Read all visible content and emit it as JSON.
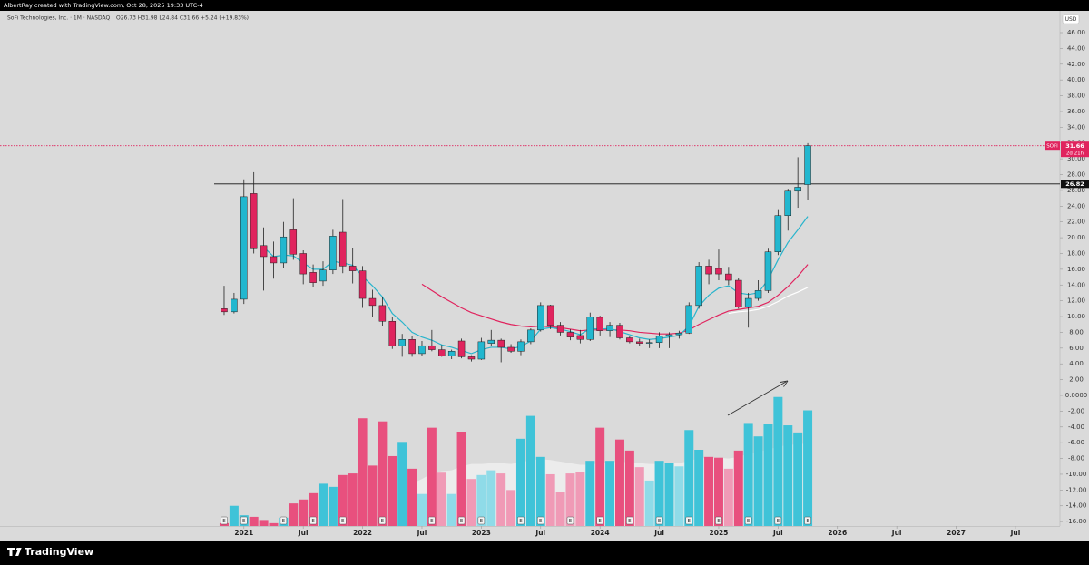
{
  "header": {
    "author_line": "AlbertRay created with TradingView.com, Oct 28, 2025 19:33 UTC-4",
    "symbol_line": "SoFi Technologies, Inc. · 1M · NASDAQ",
    "ohlc_line": "O26.73 H31.98 L24.84 C31.66 +5.24 (+19.83%)",
    "currency": "USD",
    "brand": "TradingView"
  },
  "chart_data": {
    "type": "candlestick",
    "x": [
      2020.8333,
      2020.9167,
      2021,
      2021.0833,
      2021.1667,
      2021.25,
      2021.3333,
      2021.4167,
      2021.5,
      2021.5833,
      2021.6667,
      2021.75,
      2021.8333,
      2021.9167,
      2022,
      2022.0833,
      2022.1667,
      2022.25,
      2022.3333,
      2022.4167,
      2022.5,
      2022.5833,
      2022.6667,
      2022.75,
      2022.8333,
      2022.9167,
      2023,
      2023.0833,
      2023.1667,
      2023.25,
      2023.3333,
      2023.4167,
      2023.5,
      2023.5833,
      2023.6667,
      2023.75,
      2023.8333,
      2023.9167,
      2024,
      2024.0833,
      2024.1667,
      2024.25,
      2024.3333,
      2024.4167,
      2024.5,
      2024.5833,
      2024.6667,
      2024.75,
      2024.8333,
      2024.9167,
      2025,
      2025.0833,
      2025.1667,
      2025.25,
      2025.3333,
      2025.4167,
      2025.5,
      2025.5833,
      2025.6667,
      2025.75
    ],
    "open": [
      11.0,
      10.6,
      12.2,
      25.6,
      19.0,
      17.6,
      16.8,
      21.0,
      18.0,
      15.6,
      14.5,
      15.9,
      20.7,
      16.4,
      15.8,
      12.3,
      11.4,
      9.4,
      6.3,
      7.1,
      5.3,
      6.3,
      5.8,
      5.0,
      6.9,
      4.9,
      4.6,
      6.6,
      7.0,
      6.1,
      5.6,
      6.8,
      8.3,
      11.4,
      8.9,
      8.0,
      7.6,
      7.1,
      9.9,
      8.2,
      8.9,
      7.3,
      6.8,
      6.6,
      6.7,
      7.5,
      7.7,
      7.9,
      11.4,
      16.4,
      16.1,
      15.4,
      14.6,
      11.2,
      12.3,
      13.3,
      18.2,
      22.8,
      25.9,
      26.73
    ],
    "high": [
      13.9,
      13.0,
      27.4,
      28.3,
      21.3,
      19.5,
      22.0,
      25.0,
      18.4,
      16.6,
      17.0,
      21.0,
      24.9,
      18.7,
      16.4,
      13.4,
      12.5,
      10.0,
      7.8,
      7.5,
      6.9,
      8.3,
      6.4,
      5.8,
      7.2,
      5.1,
      7.3,
      8.3,
      7.2,
      6.5,
      7.1,
      8.5,
      11.8,
      11.5,
      9.3,
      8.4,
      8.3,
      10.5,
      10.1,
      9.3,
      9.2,
      7.5,
      7.2,
      7.1,
      8.0,
      8.0,
      8.2,
      11.8,
      16.9,
      17.2,
      18.5,
      16.3,
      14.9,
      13.0,
      14.6,
      18.6,
      23.5,
      26.2,
      30.2,
      31.98
    ],
    "low": [
      10.2,
      10.4,
      11.6,
      18.0,
      13.3,
      14.8,
      16.2,
      17.2,
      14.1,
      13.8,
      13.9,
      15.4,
      15.5,
      14.2,
      11.1,
      10.0,
      8.8,
      5.9,
      4.9,
      4.9,
      5.0,
      5.6,
      4.9,
      4.6,
      4.7,
      4.3,
      4.5,
      6.3,
      4.2,
      5.4,
      5.1,
      6.5,
      8.1,
      8.4,
      7.6,
      7.0,
      6.6,
      6.9,
      7.6,
      7.4,
      7.1,
      6.6,
      6.3,
      6.0,
      6.0,
      6.0,
      7.2,
      7.8,
      11.0,
      14.1,
      14.6,
      14.0,
      11.0,
      8.6,
      12.0,
      13.0,
      17.8,
      20.9,
      23.8,
      24.84
    ],
    "close": [
      10.6,
      12.2,
      25.2,
      18.6,
      17.6,
      16.8,
      20.1,
      17.9,
      15.4,
      14.3,
      15.9,
      20.2,
      16.4,
      15.8,
      12.3,
      11.4,
      9.4,
      6.3,
      7.1,
      5.3,
      6.3,
      5.8,
      5.0,
      5.6,
      4.9,
      4.6,
      6.8,
      7.0,
      6.1,
      5.6,
      6.8,
      8.3,
      11.4,
      8.9,
      8.0,
      7.4,
      7.1,
      9.95,
      8.2,
      8.9,
      7.3,
      6.8,
      6.6,
      6.7,
      7.5,
      7.7,
      7.9,
      11.4,
      16.4,
      15.4,
      15.4,
      14.6,
      11.2,
      12.3,
      13.3,
      18.2,
      22.8,
      25.9,
      26.4,
      31.66
    ],
    "up_color": "#22b7cf",
    "down_color": "#e0245e",
    "volume": {
      "values": [
        -16.2,
        -14.0,
        -15.2,
        -15.4,
        -15.8,
        -16.2,
        -15.5,
        -13.7,
        -13.2,
        -12.4,
        -11.2,
        -11.6,
        -10.1,
        -9.9,
        -2.9,
        -8.9,
        -3.3,
        -7.7,
        -5.9,
        -9.3,
        -12.5,
        -4.1,
        -9.8,
        -12.5,
        -4.6,
        -10.6,
        -10.1,
        -9.5,
        -9.9,
        -12.0,
        -5.5,
        -2.6,
        -7.8,
        -10.0,
        -12.2,
        -9.9,
        -9.7,
        -8.3,
        -4.1,
        -8.3,
        -5.6,
        -7.0,
        -9.1,
        -10.8,
        -8.3,
        -8.6,
        -9.0,
        -4.4,
        -6.9,
        -7.8,
        -7.9,
        -9.3,
        -7.0,
        -3.5,
        -5.2,
        -3.6,
        -0.2,
        -3.8,
        -4.7,
        -1.9
      ],
      "up_color": "#3fc3d8",
      "down_color": "#e8507e",
      "faded_up_color": "#8fdbe8",
      "faded_down_color": "#f09ab6",
      "ma_color": "#f2f2f2",
      "ma": [
        null,
        null,
        null,
        null,
        null,
        null,
        null,
        null,
        null,
        null,
        null,
        null,
        null,
        null,
        null,
        null,
        null,
        null,
        null,
        -11.2,
        -10.6,
        -9.9,
        -9.6,
        -9.5,
        -9.0,
        -8.7,
        -8.7,
        -8.6,
        -8.6,
        -8.7,
        -8.5,
        -8.2,
        -8.1,
        -8.2,
        -8.4,
        -8.6,
        -8.8,
        -8.8,
        -8.6,
        -8.5,
        -8.4,
        -8.5,
        -8.6,
        -8.7,
        -8.7,
        -8.6,
        -8.6,
        -8.3,
        -8.0,
        -7.9,
        -7.9,
        -8.0,
        -7.8,
        -7.4,
        -7.1,
        -6.9,
        -6.5,
        -6.3,
        -6.2,
        -6.1
      ]
    },
    "moving_averages": [
      {
        "color": "#e0245e",
        "values": [
          null,
          null,
          null,
          null,
          null,
          null,
          null,
          null,
          null,
          null,
          null,
          null,
          null,
          null,
          null,
          null,
          null,
          null,
          null,
          null,
          14.1,
          13.3,
          12.5,
          11.8,
          11.1,
          10.5,
          10.1,
          9.7,
          9.3,
          9.0,
          8.8,
          8.7,
          8.8,
          8.7,
          8.6,
          8.4,
          8.2,
          8.3,
          8.3,
          8.3,
          8.3,
          8.2,
          8.0,
          7.9,
          7.8,
          7.8,
          7.9,
          8.3,
          9.0,
          9.6,
          10.2,
          10.7,
          10.9,
          11.1,
          11.3,
          11.8,
          12.7,
          13.8,
          15.1,
          16.6
        ]
      },
      {
        "color": "#ffffff",
        "values": [
          null,
          null,
          null,
          null,
          null,
          null,
          null,
          null,
          null,
          null,
          null,
          null,
          null,
          null,
          null,
          null,
          null,
          null,
          null,
          null,
          null,
          null,
          null,
          null,
          null,
          null,
          null,
          null,
          null,
          null,
          null,
          null,
          null,
          null,
          null,
          null,
          null,
          null,
          null,
          null,
          null,
          null,
          null,
          null,
          null,
          null,
          null,
          null,
          null,
          null,
          null,
          10.4,
          10.6,
          10.7,
          10.9,
          11.3,
          11.9,
          12.6,
          13.1,
          13.7
        ]
      },
      {
        "color": "#28b4cc",
        "values": [
          null,
          null,
          null,
          null,
          18.8,
          17.6,
          17.8,
          17.7,
          16.8,
          16.0,
          16.0,
          17.0,
          16.8,
          16.5,
          15.1,
          13.9,
          12.5,
          10.4,
          9.3,
          8.0,
          7.4,
          7.0,
          6.4,
          6.1,
          5.7,
          5.3,
          5.8,
          6.1,
          6.1,
          5.9,
          6.2,
          6.9,
          8.4,
          8.6,
          8.4,
          8.1,
          7.7,
          8.5,
          8.4,
          8.5,
          8.1,
          7.7,
          7.3,
          7.1,
          7.2,
          7.4,
          7.6,
          8.8,
          11.3,
          12.7,
          13.6,
          13.9,
          13.0,
          12.8,
          13.0,
          14.7,
          17.2,
          19.4,
          21.0,
          22.7
        ]
      }
    ],
    "earnings": [
      "E",
      null,
      "E",
      null,
      null,
      null,
      "E",
      null,
      null,
      "E",
      null,
      null,
      "E",
      null,
      null,
      null,
      "E",
      null,
      null,
      null,
      null,
      "E",
      null,
      null,
      "E",
      null,
      "E",
      null,
      null,
      null,
      "E",
      null,
      "E",
      null,
      null,
      "E",
      null,
      null,
      "E",
      null,
      null,
      "E",
      null,
      null,
      "E",
      null,
      null,
      "E",
      null,
      null,
      "E",
      null,
      null,
      "E",
      null,
      null,
      "E",
      null,
      null,
      "E"
    ],
    "last_price": {
      "symbol": "SOFI",
      "value": 31.66,
      "countdown": "2d 21h",
      "color": "#e0245e"
    },
    "hline": {
      "value": 26.82,
      "color": "#111111"
    },
    "xlim": [
      2018.945,
      2027.875
    ],
    "xticks": [
      2021,
      {
        "value": 2021.5,
        "label": "Jul"
      },
      2022,
      {
        "value": 2022.5,
        "label": "Jul"
      },
      2023,
      {
        "value": 2023.5,
        "label": "Jul"
      },
      2024,
      {
        "value": 2024.5,
        "label": "Jul"
      },
      2025,
      {
        "value": 2025.5,
        "label": "Jul"
      },
      2026,
      {
        "value": 2026.5,
        "label": "Jul"
      },
      2027,
      {
        "value": 2027.5,
        "label": "Jul"
      }
    ],
    "ylim": [
      -16.56,
      48.76
    ],
    "yticks": [
      {
        "value": 46,
        "label": "46.00"
      },
      {
        "value": 44,
        "label": "44.00"
      },
      {
        "value": 42,
        "label": "42.00"
      },
      {
        "value": 40,
        "label": "40.00"
      },
      {
        "value": 38,
        "label": "38.00"
      },
      {
        "value": 36,
        "label": "36.00"
      },
      {
        "value": 34,
        "label": "34.00"
      },
      {
        "value": 32,
        "label": "32.00"
      },
      {
        "value": 30,
        "label": "30.00"
      },
      {
        "value": 28,
        "label": "28.00"
      },
      {
        "value": 26,
        "label": "26.00"
      },
      {
        "value": 24,
        "label": "24.00"
      },
      {
        "value": 22,
        "label": "22.00"
      },
      {
        "value": 20,
        "label": "20.00"
      },
      {
        "value": 18,
        "label": "18.00"
      },
      {
        "value": 16,
        "label": "16.00"
      },
      {
        "value": 14,
        "label": "14.00"
      },
      {
        "value": 12,
        "label": "12.00"
      },
      {
        "value": 10,
        "label": "10.00"
      },
      {
        "value": 8,
        "label": "8.00"
      },
      {
        "value": 6,
        "label": "6.00"
      },
      {
        "value": 4,
        "label": "4.00"
      },
      {
        "value": 2,
        "label": "2.00"
      },
      {
        "value": 0,
        "label": "0.0000"
      },
      {
        "value": -2,
        "label": "-2.00"
      },
      {
        "value": -4,
        "label": "-4.00"
      },
      {
        "value": -6,
        "label": "-6.00"
      },
      {
        "value": -8,
        "label": "-8.00"
      },
      {
        "value": -10,
        "label": "-10.00"
      },
      {
        "value": -12,
        "label": "-12.00"
      },
      {
        "value": -14,
        "label": "-14.00"
      },
      {
        "value": -16,
        "label": "-16.00"
      }
    ],
    "grid": false
  }
}
